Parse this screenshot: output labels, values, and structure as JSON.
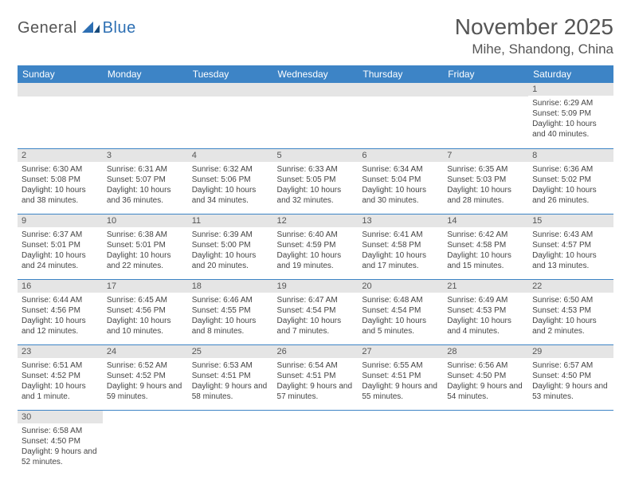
{
  "logo": {
    "part1": "General",
    "part2": "Blue"
  },
  "title": "November 2025",
  "location": "Mihe, Shandong, China",
  "colors": {
    "header_bg": "#3d84c6",
    "header_text": "#ffffff",
    "daynum_bg": "#e5e5e5",
    "row_border": "#3d84c6",
    "text": "#444444",
    "title_color": "#555555"
  },
  "day_headers": [
    "Sunday",
    "Monday",
    "Tuesday",
    "Wednesday",
    "Thursday",
    "Friday",
    "Saturday"
  ],
  "weeks": [
    [
      null,
      null,
      null,
      null,
      null,
      null,
      {
        "n": "1",
        "sr": "6:29 AM",
        "ss": "5:09 PM",
        "dl": "10 hours and 40 minutes."
      }
    ],
    [
      {
        "n": "2",
        "sr": "6:30 AM",
        "ss": "5:08 PM",
        "dl": "10 hours and 38 minutes."
      },
      {
        "n": "3",
        "sr": "6:31 AM",
        "ss": "5:07 PM",
        "dl": "10 hours and 36 minutes."
      },
      {
        "n": "4",
        "sr": "6:32 AM",
        "ss": "5:06 PM",
        "dl": "10 hours and 34 minutes."
      },
      {
        "n": "5",
        "sr": "6:33 AM",
        "ss": "5:05 PM",
        "dl": "10 hours and 32 minutes."
      },
      {
        "n": "6",
        "sr": "6:34 AM",
        "ss": "5:04 PM",
        "dl": "10 hours and 30 minutes."
      },
      {
        "n": "7",
        "sr": "6:35 AM",
        "ss": "5:03 PM",
        "dl": "10 hours and 28 minutes."
      },
      {
        "n": "8",
        "sr": "6:36 AM",
        "ss": "5:02 PM",
        "dl": "10 hours and 26 minutes."
      }
    ],
    [
      {
        "n": "9",
        "sr": "6:37 AM",
        "ss": "5:01 PM",
        "dl": "10 hours and 24 minutes."
      },
      {
        "n": "10",
        "sr": "6:38 AM",
        "ss": "5:01 PM",
        "dl": "10 hours and 22 minutes."
      },
      {
        "n": "11",
        "sr": "6:39 AM",
        "ss": "5:00 PM",
        "dl": "10 hours and 20 minutes."
      },
      {
        "n": "12",
        "sr": "6:40 AM",
        "ss": "4:59 PM",
        "dl": "10 hours and 19 minutes."
      },
      {
        "n": "13",
        "sr": "6:41 AM",
        "ss": "4:58 PM",
        "dl": "10 hours and 17 minutes."
      },
      {
        "n": "14",
        "sr": "6:42 AM",
        "ss": "4:58 PM",
        "dl": "10 hours and 15 minutes."
      },
      {
        "n": "15",
        "sr": "6:43 AM",
        "ss": "4:57 PM",
        "dl": "10 hours and 13 minutes."
      }
    ],
    [
      {
        "n": "16",
        "sr": "6:44 AM",
        "ss": "4:56 PM",
        "dl": "10 hours and 12 minutes."
      },
      {
        "n": "17",
        "sr": "6:45 AM",
        "ss": "4:56 PM",
        "dl": "10 hours and 10 minutes."
      },
      {
        "n": "18",
        "sr": "6:46 AM",
        "ss": "4:55 PM",
        "dl": "10 hours and 8 minutes."
      },
      {
        "n": "19",
        "sr": "6:47 AM",
        "ss": "4:54 PM",
        "dl": "10 hours and 7 minutes."
      },
      {
        "n": "20",
        "sr": "6:48 AM",
        "ss": "4:54 PM",
        "dl": "10 hours and 5 minutes."
      },
      {
        "n": "21",
        "sr": "6:49 AM",
        "ss": "4:53 PM",
        "dl": "10 hours and 4 minutes."
      },
      {
        "n": "22",
        "sr": "6:50 AM",
        "ss": "4:53 PM",
        "dl": "10 hours and 2 minutes."
      }
    ],
    [
      {
        "n": "23",
        "sr": "6:51 AM",
        "ss": "4:52 PM",
        "dl": "10 hours and 1 minute."
      },
      {
        "n": "24",
        "sr": "6:52 AM",
        "ss": "4:52 PM",
        "dl": "9 hours and 59 minutes."
      },
      {
        "n": "25",
        "sr": "6:53 AM",
        "ss": "4:51 PM",
        "dl": "9 hours and 58 minutes."
      },
      {
        "n": "26",
        "sr": "6:54 AM",
        "ss": "4:51 PM",
        "dl": "9 hours and 57 minutes."
      },
      {
        "n": "27",
        "sr": "6:55 AM",
        "ss": "4:51 PM",
        "dl": "9 hours and 55 minutes."
      },
      {
        "n": "28",
        "sr": "6:56 AM",
        "ss": "4:50 PM",
        "dl": "9 hours and 54 minutes."
      },
      {
        "n": "29",
        "sr": "6:57 AM",
        "ss": "4:50 PM",
        "dl": "9 hours and 53 minutes."
      }
    ],
    [
      {
        "n": "30",
        "sr": "6:58 AM",
        "ss": "4:50 PM",
        "dl": "9 hours and 52 minutes."
      },
      null,
      null,
      null,
      null,
      null,
      null
    ]
  ],
  "labels": {
    "sunrise": "Sunrise:",
    "sunset": "Sunset:",
    "daylight": "Daylight:"
  }
}
